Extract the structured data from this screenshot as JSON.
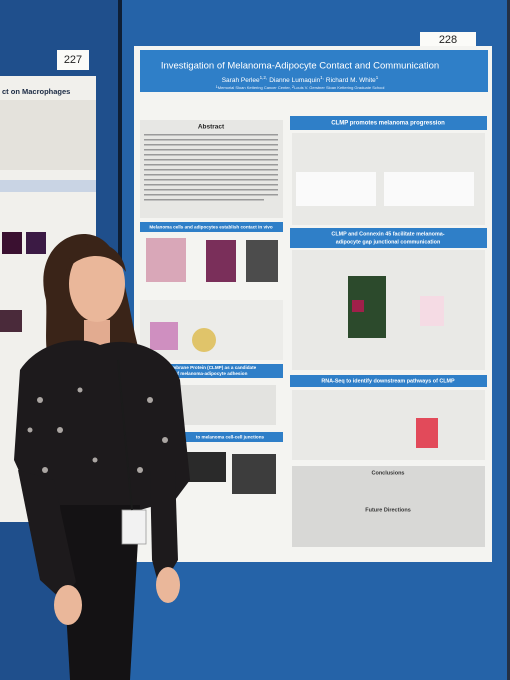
{
  "board_numbers": {
    "left": "227",
    "right": "228"
  },
  "left_poster": {
    "title_fragment": "ct on Macrophages"
  },
  "poster": {
    "title": "Investigation of Melanoma-Adipocyte Contact and Communication",
    "authors": [
      {
        "name": "Sarah Perlee",
        "sup": "1,2,"
      },
      {
        "name": "Dianne Lumaquin",
        "sup": "1,"
      },
      {
        "name": "Richard M. White",
        "sup": "1"
      }
    ],
    "affiliations": [
      {
        "sup": "1",
        "text": "Memorial Sloan Kettering Cancer Center, "
      },
      {
        "sup": "2",
        "text": "Louis V. Gerstner Sloan Kettering Graduate School"
      }
    ],
    "sections": {
      "abstract": "Abstract",
      "contact": "Melanoma cells and adipocytes establish contact in vivo",
      "clmp_candidate": "Membrane Protein (CLMP) as a candidate",
      "clmp_candidate_2": "of melanoma-adipocyte adhesion",
      "junctions": "to melanoma cell-cell junctions",
      "clmp_progression": "CLMP promotes melanoma progression",
      "connexin": "CLMP and Connexin 45 facilitate melanoma-",
      "connexin_2": "adipocyte gap junctional communication",
      "rnaseq": "RNA-Seq to identify downstream pathways of CLMP",
      "conclusions": "Conclusions",
      "future": "Future Directions"
    }
  }
}
